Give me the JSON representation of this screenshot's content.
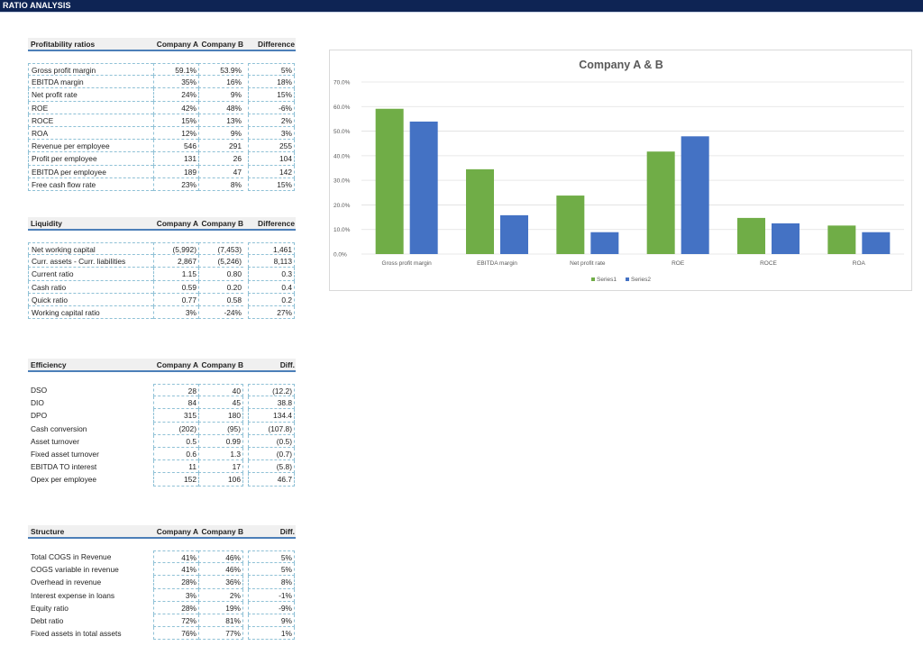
{
  "app": {
    "title": "RATIO ANALYSIS"
  },
  "sections": [
    {
      "id": "profitability",
      "headers": [
        "Profitability ratios",
        "Company A",
        "Company B",
        "Difference"
      ],
      "style": "dash",
      "rows": [
        [
          "Gross profit margin",
          "59.1%",
          "53.9%",
          "5%"
        ],
        [
          "EBITDA margin",
          "35%",
          "16%",
          "18%"
        ],
        [
          "Net profit rate",
          "24%",
          "9%",
          "15%"
        ],
        [
          "ROE",
          "42%",
          "48%",
          "-6%"
        ],
        [
          "ROCE",
          "15%",
          "13%",
          "2%"
        ],
        [
          "ROA",
          "12%",
          "9%",
          "3%"
        ],
        [
          "Revenue per employee",
          "546",
          "291",
          "255"
        ],
        [
          "Profit per employee",
          "131",
          "26",
          "104"
        ],
        [
          "EBITDA per employee",
          "189",
          "47",
          "142"
        ],
        [
          "Free cash flow rate",
          "23%",
          "8%",
          "15%"
        ]
      ]
    },
    {
      "id": "liquidity",
      "headers": [
        "Liquidity",
        "Company A",
        "Company B",
        "Difference"
      ],
      "style": "dash",
      "rows": [
        [
          "Net working capital",
          "(5,992)",
          "(7,453)",
          "1,461"
        ],
        [
          "Curr. assets - Curr. liabilities",
          "2,867",
          "(5,246)",
          "8,113"
        ],
        [
          "Current ratio",
          "1.15",
          "0.80",
          "0.3"
        ],
        [
          "Cash ratio",
          "0.59",
          "0.20",
          "0.4"
        ],
        [
          "Quick ratio",
          "0.77",
          "0.58",
          "0.2"
        ],
        [
          "Working capital ratio",
          "3%",
          "-24%",
          "27%"
        ]
      ]
    },
    {
      "id": "efficiency",
      "headers": [
        "Efficiency",
        "Company A",
        "Company B",
        "Diff."
      ],
      "style": "nodash",
      "rows": [
        [
          "DSO",
          "28",
          "40",
          "(12.2)"
        ],
        [
          "DIO",
          "84",
          "45",
          "38.8"
        ],
        [
          "DPO",
          "315",
          "180",
          "134.4"
        ],
        [
          "Cash conversion",
          "(202)",
          "(95)",
          "(107.8)"
        ],
        [
          "Asset turnover",
          "0.5",
          "0.99",
          "(0.5)"
        ],
        [
          "Fixed asset turnover",
          "0.6",
          "1.3",
          "(0.7)"
        ],
        [
          "EBITDA TO interest",
          "11",
          "17",
          "(5.8)"
        ],
        [
          "Opex per employee",
          "152",
          "106",
          "46.7"
        ]
      ]
    },
    {
      "id": "structure",
      "headers": [
        "Structure",
        "Company A",
        "Company B",
        "Diff."
      ],
      "style": "nodash",
      "rows": [
        [
          "Total COGS in Revenue",
          "41%",
          "46%",
          "5%"
        ],
        [
          "COGS variable in revenue",
          "41%",
          "46%",
          "5%"
        ],
        [
          "Overhead in revenue",
          "28%",
          "36%",
          "8%"
        ],
        [
          "Interest expense in loans",
          "3%",
          "2%",
          "-1%"
        ],
        [
          "Equity ratio",
          "28%",
          "19%",
          "-9%"
        ],
        [
          "Debt ratio",
          "72%",
          "81%",
          "9%"
        ],
        [
          "Fixed assets in total assets",
          "76%",
          "77%",
          "1%"
        ]
      ]
    }
  ],
  "chart_data": {
    "type": "bar",
    "title": "Company  A & B",
    "categories": [
      "Gross profit margin",
      "EBITDA margin",
      "Net profit rate",
      "ROE",
      "ROCE",
      "ROA"
    ],
    "series": [
      {
        "name": "Series1",
        "values": [
          59.1,
          34.5,
          23.8,
          41.7,
          14.7,
          11.6
        ],
        "color": "#70ad47"
      },
      {
        "name": "Series2",
        "values": [
          53.9,
          15.8,
          8.9,
          47.9,
          12.5,
          8.9
        ],
        "color": "#4472c4"
      }
    ],
    "yticks": [
      "0.0%",
      "10.0%",
      "20.0%",
      "30.0%",
      "40.0%",
      "50.0%",
      "60.0%",
      "70.0%"
    ],
    "ylim": [
      0,
      70
    ],
    "grid": true,
    "legend": "bottom"
  }
}
